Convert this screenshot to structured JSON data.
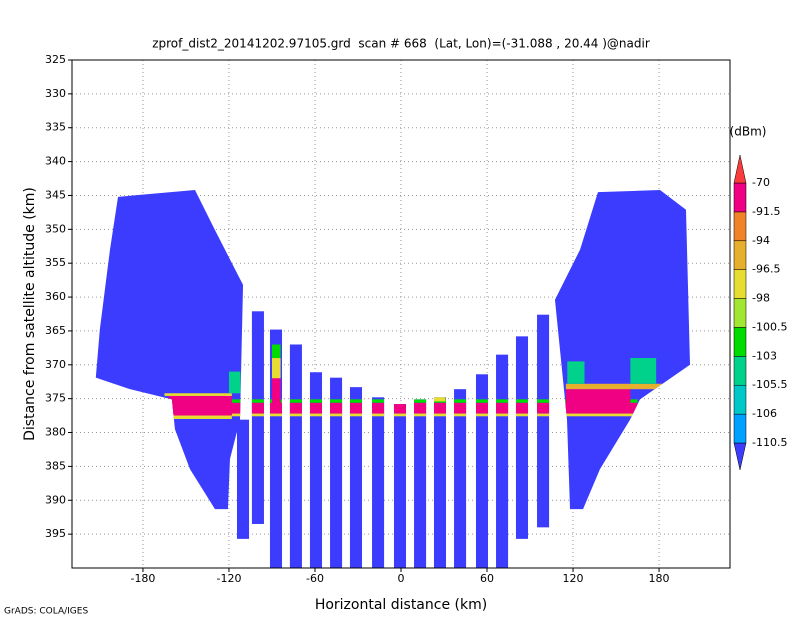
{
  "chart_data": {
    "type": "heatmap",
    "title": "zprof_dist2_20141202.97105.grd  scan # 668  (Lat, Lon)=(-31.088 , 20.44 )@nadir",
    "xlabel": "Horizontal distance (km)",
    "ylabel": "Distance from satellite altitude (km)",
    "xlim": [
      -229.5,
      229.5
    ],
    "ylim": [
      325,
      400
    ],
    "y_inverted": true,
    "xticks": [
      -180,
      -120,
      -60,
      0,
      60,
      120,
      180
    ],
    "yticks": [
      325,
      330,
      335,
      340,
      345,
      350,
      355,
      360,
      365,
      370,
      375,
      380,
      385,
      390,
      395
    ],
    "grid": true,
    "colorbar": {
      "unit": "(dBm)",
      "levels": [
        -110.5,
        -106,
        -105.5,
        -103,
        -100.5,
        -98,
        -96.5,
        -94,
        -91.5,
        -70
      ],
      "colors": [
        "#3c3cff",
        "#00a0ff",
        "#00c8c8",
        "#00d28c",
        "#00dc00",
        "#a0e632",
        "#e6dc32",
        "#e6af2d",
        "#f08228",
        "#f00082",
        "#fa3c3c"
      ]
    },
    "polygons": [
      {
        "value": -115,
        "points": [
          [
            -197.4,
            345.2
          ],
          [
            -143.7,
            344.2
          ],
          [
            -129.8,
            350.1
          ],
          [
            -110.2,
            358.2
          ],
          [
            -112.3,
            378.1
          ],
          [
            -119.3,
            383.9
          ],
          [
            -120.7,
            391.3
          ],
          [
            -129.8,
            391.3
          ],
          [
            -147.2,
            385.4
          ],
          [
            -157.7,
            379.5
          ],
          [
            -159.8,
            375.1
          ],
          [
            -189.1,
            373.6
          ],
          [
            -212.9,
            371.9
          ],
          [
            -210.1,
            364.8
          ],
          [
            -203.0,
            353.0
          ]
        ]
      },
      {
        "value": -115,
        "points": [
          [
            137.4,
            344.5
          ],
          [
            180.7,
            344.2
          ],
          [
            198.8,
            347.1
          ],
          [
            201.6,
            370.0
          ],
          [
            166.7,
            375.1
          ],
          [
            159.8,
            378.1
          ],
          [
            138.8,
            385.4
          ],
          [
            127.0,
            391.3
          ],
          [
            117.9,
            391.3
          ],
          [
            115.8,
            378.1
          ],
          [
            107.4,
            360.4
          ],
          [
            124.9,
            353.0
          ]
        ]
      }
    ],
    "stripes": [
      {
        "value": -115,
        "x1": -114.4,
        "x2": -106.0,
        "top": 378.1,
        "bottom": 395.7
      },
      {
        "value": -115,
        "x1": -104.0,
        "x2": -95.6,
        "top": 362.1,
        "bottom": 393.5
      },
      {
        "value": -115,
        "x1": -91.4,
        "x2": -83.0,
        "top": 364.8,
        "bottom": 400
      },
      {
        "value": -115,
        "x1": -77.5,
        "x2": -69.1,
        "top": 367.0,
        "bottom": 400
      },
      {
        "value": -115,
        "x1": -63.5,
        "x2": -55.1,
        "top": 371.1,
        "bottom": 400
      },
      {
        "value": -115,
        "x1": -49.5,
        "x2": -41.1,
        "top": 371.9,
        "bottom": 400
      },
      {
        "value": -115,
        "x1": -35.6,
        "x2": -27.2,
        "top": 373.3,
        "bottom": 400
      },
      {
        "value": -115,
        "x1": -20.2,
        "x2": -11.8,
        "top": 374.8,
        "bottom": 400
      },
      {
        "value": -115,
        "x1": -4.9,
        "x2": 3.5,
        "top": 375.8,
        "bottom": 400
      },
      {
        "value": -115,
        "x1": 9.1,
        "x2": 17.5,
        "top": 375.1,
        "bottom": 400
      },
      {
        "value": -115,
        "x1": 23.0,
        "x2": 31.4,
        "top": 374.8,
        "bottom": 400
      },
      {
        "value": -115,
        "x1": 37.0,
        "x2": 45.4,
        "top": 373.6,
        "bottom": 400
      },
      {
        "value": -115,
        "x1": 52.3,
        "x2": 60.7,
        "top": 371.4,
        "bottom": 400
      },
      {
        "value": -115,
        "x1": 66.3,
        "x2": 74.7,
        "top": 368.5,
        "bottom": 400
      },
      {
        "value": -115,
        "x1": 80.2,
        "x2": 88.6,
        "top": 365.8,
        "bottom": 395.7
      },
      {
        "value": -115,
        "x1": 94.9,
        "x2": 103.3,
        "top": 362.6,
        "bottom": 394.0
      }
    ],
    "regions": [
      {
        "value": -85,
        "x1": -165,
        "x2": 165,
        "y1": 375.6,
        "y2": 377.2
      },
      {
        "value": -97,
        "x1": -165,
        "x2": 165,
        "y1": 377.2,
        "y2": 377.6
      },
      {
        "value": -102,
        "x1": -165,
        "x2": 165,
        "y1": 375.1,
        "y2": 375.6
      },
      {
        "value": -85,
        "x1": -162,
        "x2": -118,
        "y1": 374.6,
        "y2": 377.5
      },
      {
        "value": -97,
        "x1": -165,
        "x2": -118,
        "y1": 377.5,
        "y2": 378.0
      },
      {
        "value": -97,
        "x1": -165,
        "x2": -118,
        "y1": 374.2,
        "y2": 374.6
      },
      {
        "value": -85,
        "x1": 115,
        "x2": 160,
        "y1": 373.6,
        "y2": 376.5
      },
      {
        "value": -95,
        "x1": 115,
        "x2": 205,
        "y1": 372.8,
        "y2": 373.6
      },
      {
        "value": -97,
        "x1": -90,
        "x2": -84,
        "y1": 369.0,
        "y2": 372.0
      },
      {
        "value": -85,
        "x1": -90,
        "x2": -84,
        "y1": 372.0,
        "y2": 376.0
      },
      {
        "value": -102,
        "x1": -90,
        "x2": -84,
        "y1": 367.0,
        "y2": 369.0
      },
      {
        "value": -104,
        "x1": -120,
        "x2": -112,
        "y1": 371.0,
        "y2": 374.2
      },
      {
        "value": -104,
        "x1": 116,
        "x2": 128,
        "y1": 369.5,
        "y2": 372.8
      },
      {
        "value": -104,
        "x1": 160,
        "x2": 178,
        "y1": 369.0,
        "y2": 372.8
      },
      {
        "value": -97,
        "x1": 23,
        "x2": 31,
        "y1": 374.6,
        "y2": 375.4
      }
    ]
  },
  "credit": "GrADS: COLA/IGES"
}
